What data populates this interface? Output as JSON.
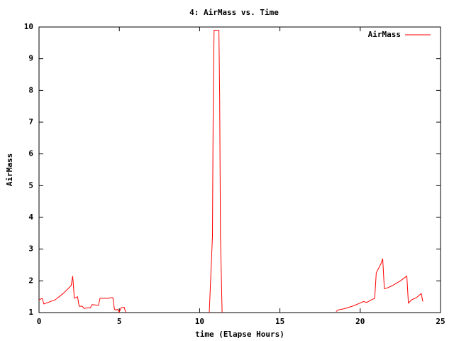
{
  "chart_data": {
    "type": "line",
    "title": "4: AirMass vs. Time",
    "xlabel": "time (Elapse Hours)",
    "ylabel": "AirMass",
    "x": [
      0,
      0.2,
      0.3,
      1,
      1.5,
      2,
      2.1,
      2.2,
      2.4,
      2.5,
      2.7,
      2.8,
      3,
      3.2,
      3.3,
      3.7,
      3.8,
      4.3,
      4.5,
      4.6,
      4.7,
      4.8,
      4.9,
      5,
      5.1,
      5.3,
      5.4,
      null,
      10.6,
      10.8,
      10.85,
      10.9,
      11.2,
      11.25,
      11.3,
      11.4,
      null,
      18.5,
      18.6,
      19,
      19.5,
      20,
      20.2,
      20.4,
      20.7,
      20.9,
      21,
      21.3,
      21.4,
      21.5,
      21.7,
      22,
      22.5,
      22.9,
      23,
      23.2,
      23.5,
      23.8,
      23.9
    ],
    "series": [
      {
        "name": "AirMass",
        "color": "#ff0000",
        "values": [
          1.4,
          1.45,
          1.27,
          1.4,
          1.6,
          1.85,
          2.15,
          1.45,
          1.5,
          1.2,
          1.2,
          1.13,
          1.15,
          1.15,
          1.25,
          1.23,
          1.45,
          1.45,
          1.47,
          1.47,
          1.1,
          1.08,
          1.1,
          1.02,
          1.15,
          1.17,
          1.0,
          null,
          1.0,
          3.4,
          7.7,
          9.9,
          9.9,
          7.7,
          3.4,
          1.0,
          null,
          1.03,
          1.08,
          1.12,
          1.2,
          1.3,
          1.35,
          1.32,
          1.4,
          1.45,
          2.25,
          2.55,
          2.7,
          1.75,
          1.78,
          1.85,
          2.0,
          2.15,
          1.3,
          1.4,
          1.47,
          1.6,
          1.35
        ]
      }
    ],
    "xlim": [
      0,
      25
    ],
    "xticks": [
      0,
      5,
      10,
      15,
      20,
      25
    ],
    "ylim": [
      1,
      10
    ],
    "yticks": [
      1,
      2,
      3,
      4,
      5,
      6,
      7,
      8,
      9,
      10
    ],
    "legend": "upper right"
  }
}
